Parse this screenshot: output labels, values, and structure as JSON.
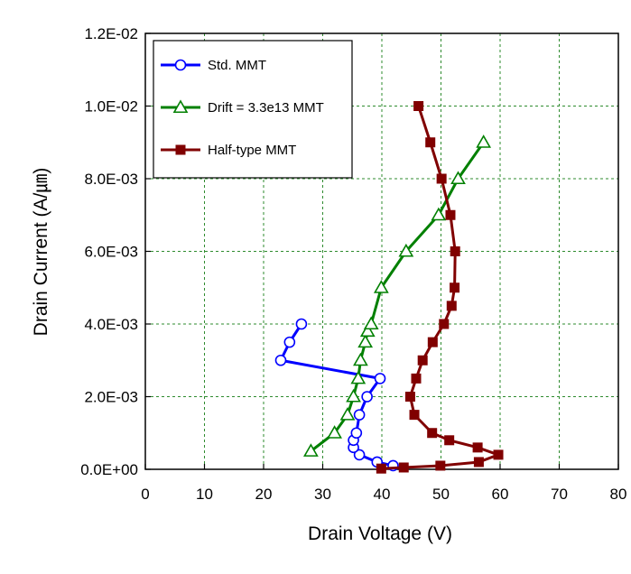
{
  "chart_data": {
    "type": "line",
    "xlabel": "Drain Voltage (V)",
    "ylabel": "Drain Current (A/㎛)",
    "xlim": [
      0,
      80
    ],
    "ylim": [
      0,
      0.012
    ],
    "x_ticks": [
      0,
      10,
      20,
      30,
      40,
      50,
      60,
      70,
      80
    ],
    "x_tick_labels": [
      "0",
      "10",
      "20",
      "30",
      "40",
      "50",
      "60",
      "70",
      "80"
    ],
    "y_ticks": [
      0,
      0.002,
      0.004,
      0.006,
      0.008,
      0.01,
      0.012
    ],
    "y_tick_labels": [
      "0.0E+00",
      "2.0E-03",
      "4.0E-03",
      "6.0E-03",
      "8.0E-03",
      "1.0E-02",
      "1.2E-02"
    ],
    "grid": "dashed",
    "legend_position": "top-left",
    "series": [
      {
        "name": "Std.  MMT",
        "color": "#0000FF",
        "marker": "circle-open",
        "x": [
          41.9,
          39.2,
          36.2,
          35.2,
          35.2,
          35.7,
          36.2,
          37.5,
          39.7,
          22.9,
          24.4,
          26.4
        ],
        "y": [
          0.0001,
          0.0002,
          0.0004,
          0.0006,
          0.0008,
          0.001,
          0.0015,
          0.002,
          0.0025,
          0.003,
          0.0035,
          0.004
        ]
      },
      {
        "name": "Drift = 3.3e13  MMT",
        "color": "#008000",
        "marker": "triangle-open",
        "x": [
          28.0,
          32.0,
          34.2,
          35.2,
          36.0,
          36.4,
          37.2,
          37.6,
          38.2,
          39.9,
          44.1,
          49.6,
          52.9,
          57.2
        ],
        "y": [
          0.0005,
          0.001,
          0.0015,
          0.002,
          0.0025,
          0.003,
          0.0035,
          0.0038,
          0.004,
          0.005,
          0.006,
          0.007,
          0.008,
          0.009
        ]
      },
      {
        "name": "Half-type MMT",
        "color": "#800000",
        "marker": "square-filled",
        "x": [
          39.9,
          43.7,
          49.9,
          56.4,
          59.7,
          56.2,
          51.4,
          48.5,
          45.5,
          44.8,
          45.8,
          46.9,
          48.6,
          50.5,
          51.8,
          52.3,
          52.4,
          51.6,
          50.1,
          48.2,
          46.2
        ],
        "y": [
          2e-05,
          5e-05,
          0.0001,
          0.0002,
          0.0004,
          0.0006,
          0.0008,
          0.001,
          0.0015,
          0.002,
          0.0025,
          0.003,
          0.0035,
          0.004,
          0.0045,
          0.005,
          0.006,
          0.007,
          0.008,
          0.009,
          0.01
        ]
      }
    ]
  },
  "colors": {
    "plot_border": "#000000",
    "grid": "#2E8B2E",
    "background": "#FFFFFF"
  }
}
